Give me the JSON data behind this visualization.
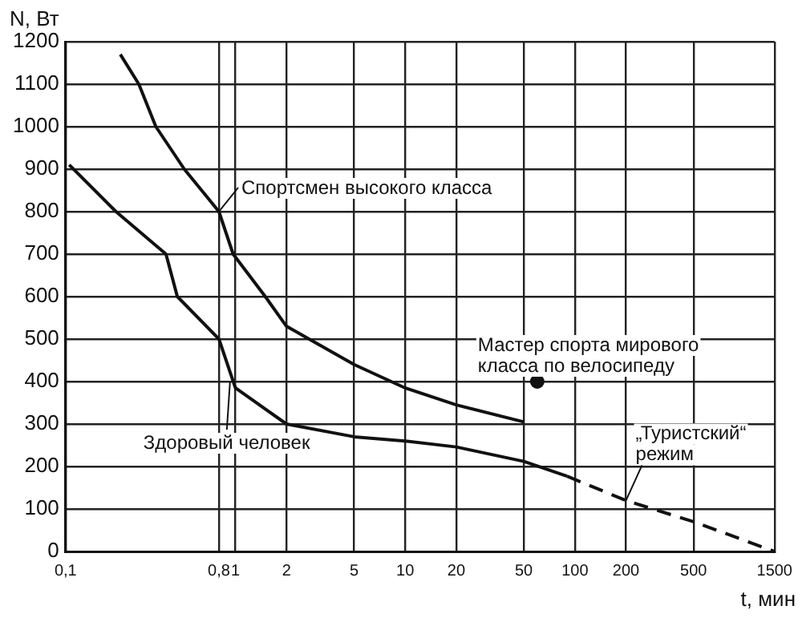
{
  "chart_data": {
    "type": "line",
    "xlabel": "t, мин",
    "ylabel": "N, Вт",
    "log": "x",
    "grid": true,
    "xlim": [
      0.1,
      1500
    ],
    "ylim": [
      0,
      1200
    ],
    "xticks": [
      {
        "value": 0.1,
        "label": "0,1"
      },
      {
        "value": 0.8,
        "label": "0,8"
      },
      1,
      2,
      5,
      10,
      20,
      50,
      100,
      200,
      500,
      1500
    ],
    "yticks": [
      0,
      100,
      200,
      300,
      400,
      500,
      600,
      700,
      800,
      900,
      1000,
      1100,
      1200
    ],
    "series": [
      {
        "color": "#111111",
        "line_style": "solid",
        "marker": "none",
        "x": [
          0.21,
          0.27,
          0.34,
          0.5,
          0.8,
          0.97,
          1.5,
          2,
          5,
          10,
          20,
          50
        ],
        "values": [
          1170,
          1100,
          1000,
          900,
          800,
          700,
          600,
          530,
          440,
          385,
          345,
          305
        ]
      },
      {
        "color": "#111111",
        "line_style": "solid",
        "marker": "none",
        "x": [
          0.105,
          0.198,
          0.39,
          0.455,
          0.8,
          1,
          2,
          5,
          10,
          20,
          50,
          90
        ],
        "values": [
          910,
          800,
          700,
          600,
          500,
          385,
          300,
          270,
          260,
          246,
          212,
          177
        ]
      },
      {
        "color": "#111111",
        "line_style": "dashed",
        "marker": "none",
        "x": [
          90,
          200,
          500,
          1500
        ],
        "values": [
          177,
          120,
          70,
          0
        ]
      },
      {
        "type": "scatter",
        "color": "#111111",
        "marker": "circle",
        "x": [
          60
        ],
        "values": [
          400
        ]
      }
    ],
    "annotations": [
      {
        "text": "Спортсмен высокого класса",
        "x": 0.8,
        "y": 800
      },
      {
        "text": "Здоровый человек",
        "x": 0.93,
        "y": 400
      },
      {
        "text": "Мастер спорта мирового класса по велосипеду",
        "x": 60,
        "y": 400
      },
      {
        "text": "„Туристский“ режим",
        "x": 200,
        "y": 120
      }
    ]
  }
}
